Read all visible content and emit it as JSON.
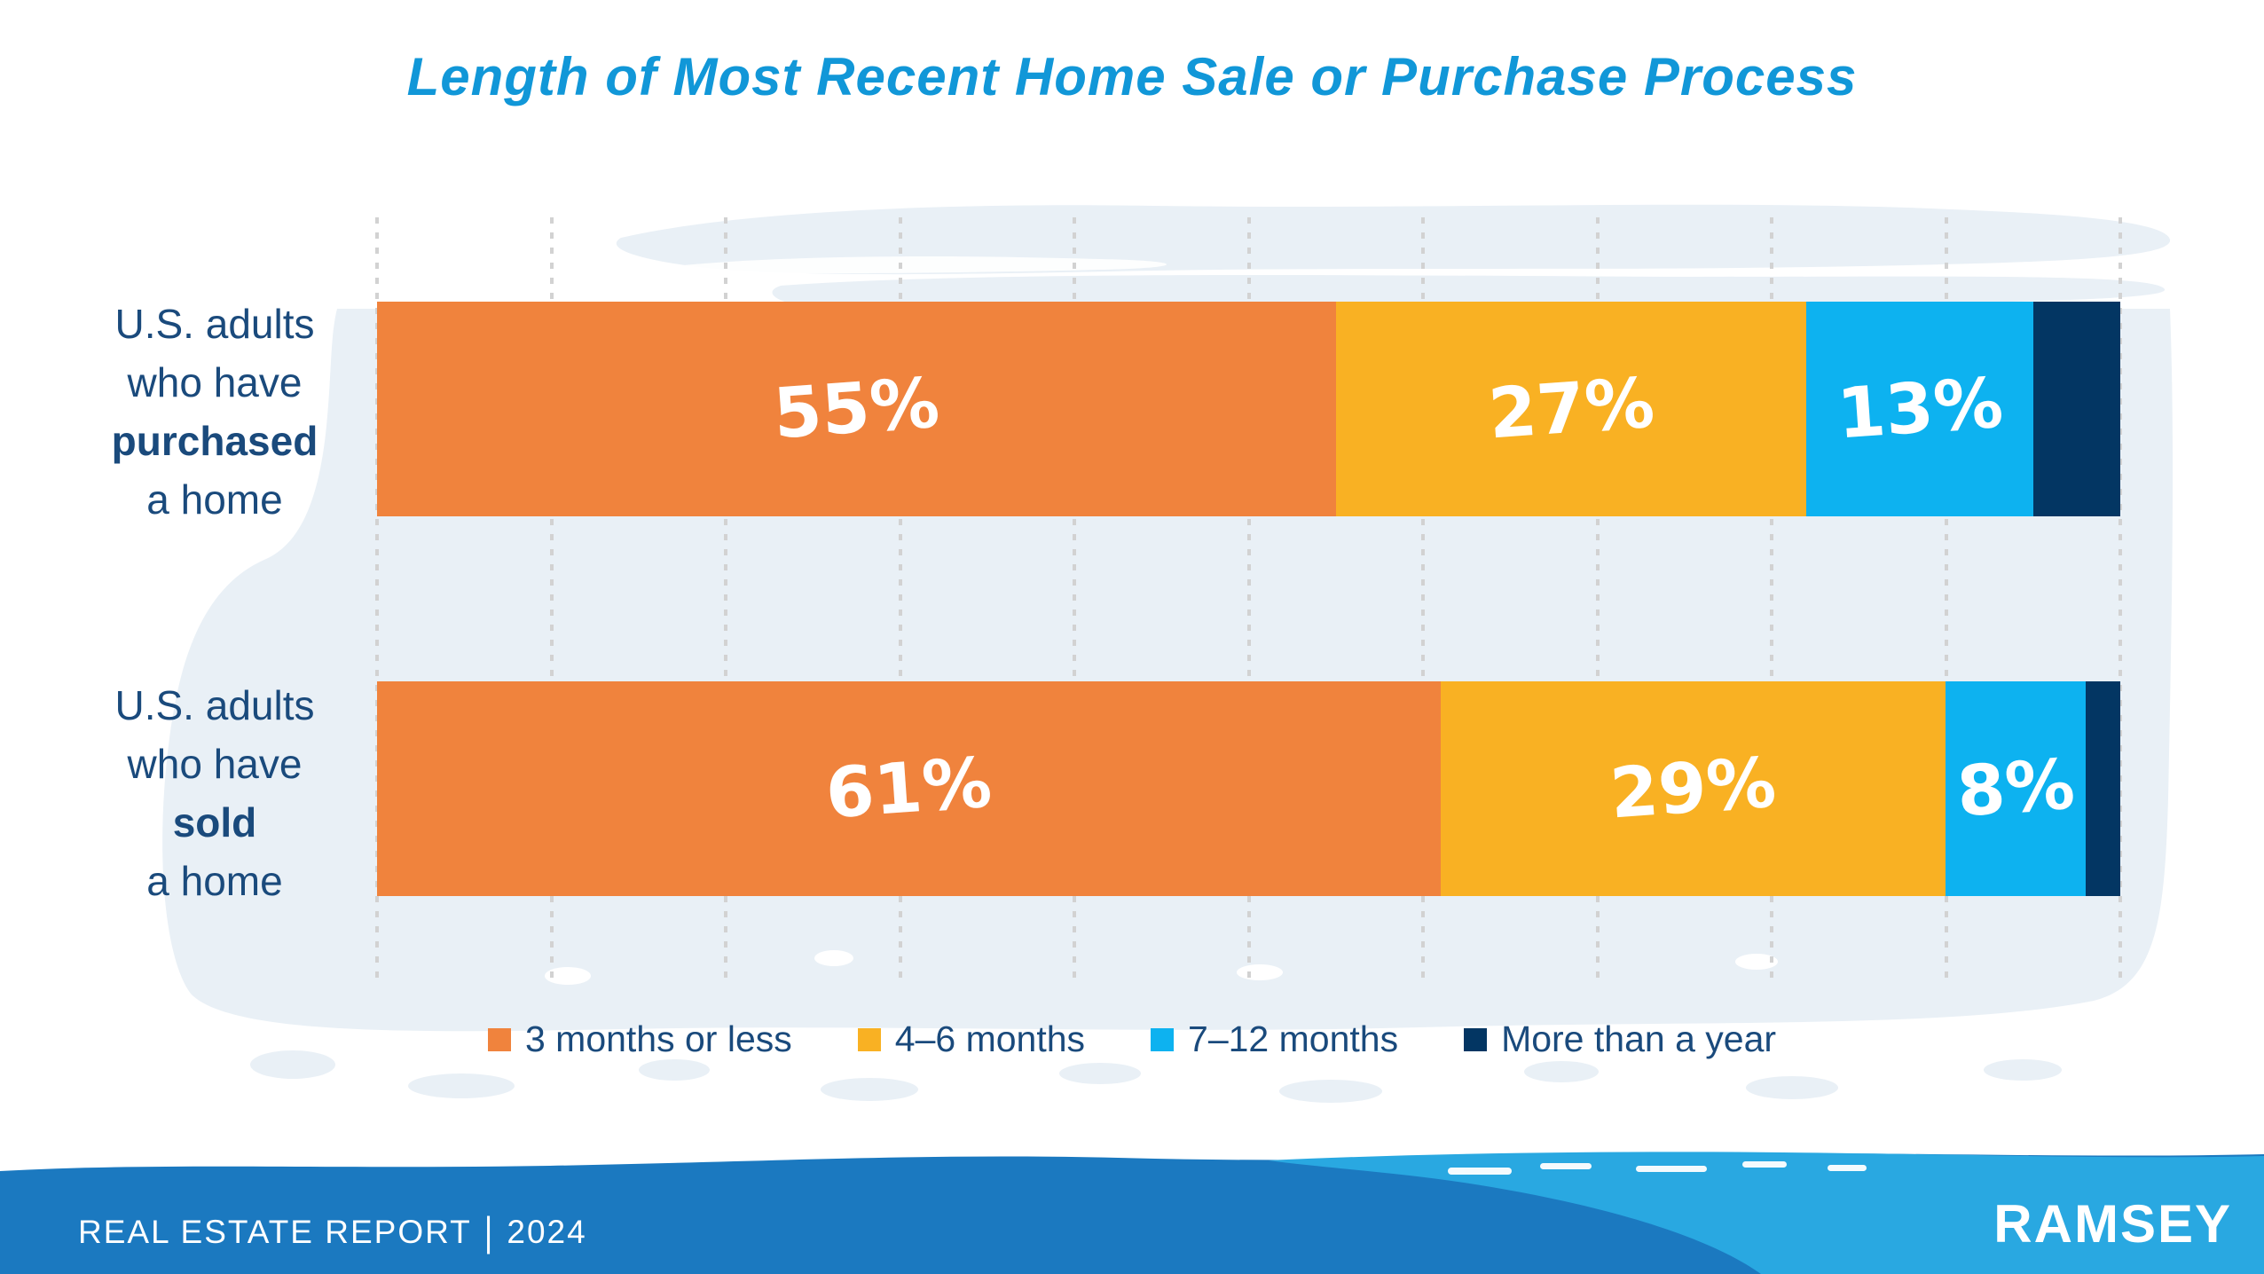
{
  "chart_data": {
    "type": "bar",
    "stacked": true,
    "orientation": "horizontal",
    "title": "Length of Most Recent Home Sale or Purchase Process",
    "title_color": "#1197D8",
    "categories": [
      "U.S. adults who have purchased a home",
      "U.S. adults who have sold a home"
    ],
    "series": [
      {
        "name": "3 months or less",
        "color": "#F0833D",
        "values": [
          55,
          61
        ]
      },
      {
        "name": "4–6 months",
        "color": "#F9B123",
        "values": [
          27,
          29
        ]
      },
      {
        "name": "7–12 months",
        "color": "#0DB2F0",
        "values": [
          13,
          8
        ]
      },
      {
        "name": "More than a year",
        "color": "#033663",
        "values": [
          5,
          2
        ]
      }
    ],
    "bar_labels": [
      [
        "55%",
        "27%",
        "13%",
        ""
      ],
      [
        "61%",
        "29%",
        "8%",
        ""
      ]
    ],
    "xlim": [
      0,
      100
    ],
    "gridlines": {
      "style": "dotted",
      "interval_pct": 10,
      "color": "#D2D2D2"
    },
    "legend_position": "bottom",
    "value_label_color": "#FFFFFF"
  },
  "category_labels": [
    {
      "lines": [
        "U.S. adults",
        "who have",
        "purchased",
        "a home"
      ],
      "bold_line": 2
    },
    {
      "lines": [
        "U.S. adults",
        "who have",
        "sold",
        "a home"
      ],
      "bold_line": 2
    }
  ],
  "footer": {
    "left_label": "REAL ESTATE REPORT",
    "separator": "|",
    "year": "2024",
    "brand": "RAMSEY",
    "band_color": "#1B79C0",
    "band_color_light": "#29A8E1"
  },
  "background": {
    "blob_color": "#E9F0F6"
  }
}
